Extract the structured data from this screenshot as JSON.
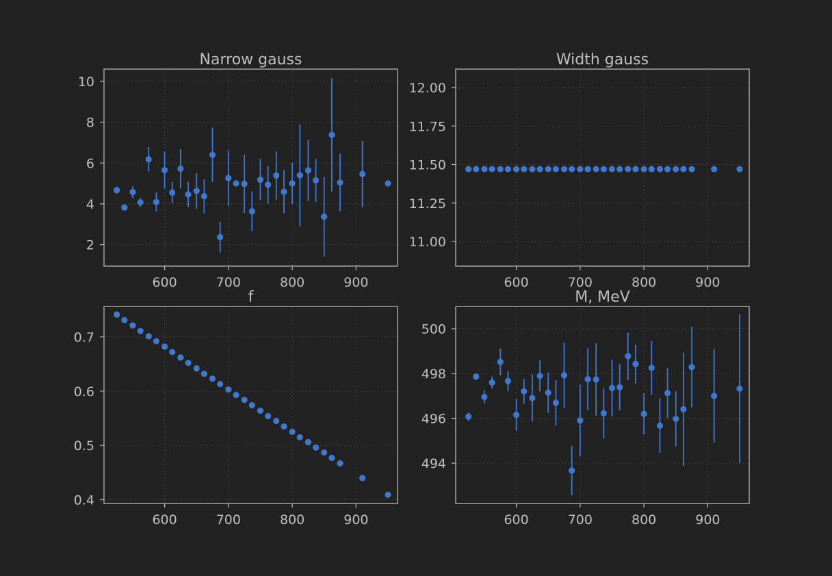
{
  "colors": {
    "background": "#222222",
    "axes_frame": "#9a9a9a",
    "text": "#bfbfbf",
    "marker": "#3f78d0",
    "grid": "#3d3d3d"
  },
  "chart_data": [
    {
      "type": "scatter",
      "title": "Narrow gauss",
      "xlabel": "",
      "ylabel": "",
      "xlim": [
        505,
        965
      ],
      "ylim": [
        0.95,
        10.6
      ],
      "xticks": [
        600,
        700,
        800,
        900
      ],
      "yticks": [
        2,
        4,
        6,
        8,
        10
      ],
      "xtick_labels": [
        "600",
        "700",
        "800",
        "900"
      ],
      "ytick_labels": [
        "2",
        "4",
        "6",
        "8",
        "10"
      ],
      "grid": true,
      "error_bars": true,
      "x": [
        525,
        537,
        550,
        562,
        575,
        587,
        600,
        612,
        625,
        637,
        650,
        662,
        675,
        687,
        700,
        712,
        725,
        737,
        750,
        762,
        775,
        787,
        800,
        812,
        825,
        837,
        850,
        862,
        875,
        910,
        950
      ],
      "y": [
        4.67,
        3.82,
        4.58,
        4.07,
        6.18,
        4.09,
        5.65,
        4.55,
        5.72,
        4.46,
        4.63,
        4.37,
        6.4,
        2.37,
        5.26,
        5.0,
        4.98,
        3.63,
        5.18,
        4.94,
        5.39,
        4.59,
        5.0,
        5.4,
        5.64,
        5.15,
        3.37,
        7.38,
        5.04,
        5.46,
        5.0
      ],
      "yerr": [
        0.17,
        0.15,
        0.3,
        0.22,
        0.6,
        0.47,
        0.9,
        0.52,
        0.96,
        0.62,
        0.88,
        0.83,
        1.33,
        0.76,
        1.36,
        0.05,
        1.43,
        0.97,
        1.01,
        0.93,
        1.18,
        1.07,
        1.02,
        2.48,
        1.5,
        1.05,
        1.94,
        2.78,
        1.42,
        1.62,
        0.05
      ]
    },
    {
      "type": "scatter",
      "title": "Width gauss",
      "xlabel": "",
      "ylabel": "",
      "xlim": [
        505,
        965
      ],
      "ylim": [
        10.84,
        12.12
      ],
      "xticks": [
        600,
        700,
        800,
        900
      ],
      "yticks": [
        11.0,
        11.25,
        11.5,
        11.75,
        12.0
      ],
      "xtick_labels": [
        "600",
        "700",
        "800",
        "900"
      ],
      "ytick_labels": [
        "11.00",
        "11.25",
        "11.50",
        "11.75",
        "12.00"
      ],
      "grid": true,
      "error_bars": false,
      "x": [
        525,
        537,
        550,
        562,
        575,
        587,
        600,
        612,
        625,
        637,
        650,
        662,
        675,
        687,
        700,
        712,
        725,
        737,
        750,
        762,
        775,
        787,
        800,
        812,
        825,
        837,
        850,
        862,
        875,
        910,
        950
      ],
      "y": [
        11.47,
        11.47,
        11.47,
        11.47,
        11.47,
        11.47,
        11.47,
        11.47,
        11.47,
        11.47,
        11.47,
        11.47,
        11.47,
        11.47,
        11.47,
        11.47,
        11.47,
        11.47,
        11.47,
        11.47,
        11.47,
        11.47,
        11.47,
        11.47,
        11.47,
        11.47,
        11.47,
        11.47,
        11.47,
        11.47,
        11.47
      ],
      "yerr": []
    },
    {
      "type": "scatter",
      "title": "f",
      "xlabel": "",
      "ylabel": "",
      "xlim": [
        505,
        965
      ],
      "ylim": [
        0.393,
        0.756
      ],
      "xticks": [
        600,
        700,
        800,
        900
      ],
      "yticks": [
        0.4,
        0.5,
        0.6,
        0.7
      ],
      "xtick_labels": [
        "600",
        "700",
        "800",
        "900"
      ],
      "ytick_labels": [
        "0.4",
        "0.5",
        "0.6",
        "0.7"
      ],
      "grid": true,
      "error_bars": false,
      "x": [
        525,
        537,
        550,
        562,
        575,
        587,
        600,
        612,
        625,
        637,
        650,
        662,
        675,
        687,
        700,
        712,
        725,
        737,
        750,
        762,
        775,
        787,
        800,
        812,
        825,
        837,
        850,
        862,
        875,
        910,
        950
      ],
      "y": [
        0.741,
        0.731,
        0.721,
        0.711,
        0.701,
        0.692,
        0.682,
        0.672,
        0.662,
        0.652,
        0.642,
        0.632,
        0.623,
        0.613,
        0.603,
        0.593,
        0.584,
        0.574,
        0.564,
        0.554,
        0.545,
        0.535,
        0.525,
        0.515,
        0.506,
        0.496,
        0.487,
        0.477,
        0.467,
        0.44,
        0.409
      ],
      "yerr": []
    },
    {
      "type": "scatter",
      "title": "M, MeV",
      "xlabel": "",
      "ylabel": "",
      "xlim": [
        505,
        965
      ],
      "ylim": [
        492.2,
        501.0
      ],
      "xticks": [
        600,
        700,
        800,
        900
      ],
      "yticks": [
        494,
        496,
        498,
        500
      ],
      "xtick_labels": [
        "600",
        "700",
        "800",
        "900"
      ],
      "ytick_labels": [
        "494",
        "496",
        "498",
        "500"
      ],
      "grid": true,
      "error_bars": true,
      "x": [
        525,
        537,
        550,
        562,
        575,
        587,
        600,
        612,
        625,
        637,
        650,
        662,
        675,
        687,
        700,
        712,
        725,
        737,
        750,
        762,
        775,
        787,
        800,
        812,
        825,
        837,
        850,
        862,
        875,
        910,
        950
      ],
      "y": [
        496.08,
        497.87,
        496.96,
        497.6,
        498.52,
        497.67,
        496.16,
        497.21,
        496.91,
        497.9,
        497.15,
        496.7,
        497.93,
        493.67,
        495.91,
        497.75,
        497.74,
        496.23,
        497.36,
        497.39,
        498.78,
        498.43,
        496.2,
        498.26,
        495.68,
        497.13,
        495.98,
        496.41,
        498.29,
        497.01,
        497.33
      ],
      "yerr": [
        0.18,
        0.12,
        0.3,
        0.27,
        0.6,
        0.45,
        0.72,
        0.55,
        1.05,
        0.7,
        0.9,
        1.02,
        1.46,
        1.1,
        1.6,
        1.38,
        1.62,
        1.12,
        1.26,
        1.04,
        1.06,
        0.87,
        0.92,
        1.2,
        1.22,
        1.12,
        1.24,
        2.53,
        1.8,
        2.09,
        3.33
      ]
    }
  ]
}
